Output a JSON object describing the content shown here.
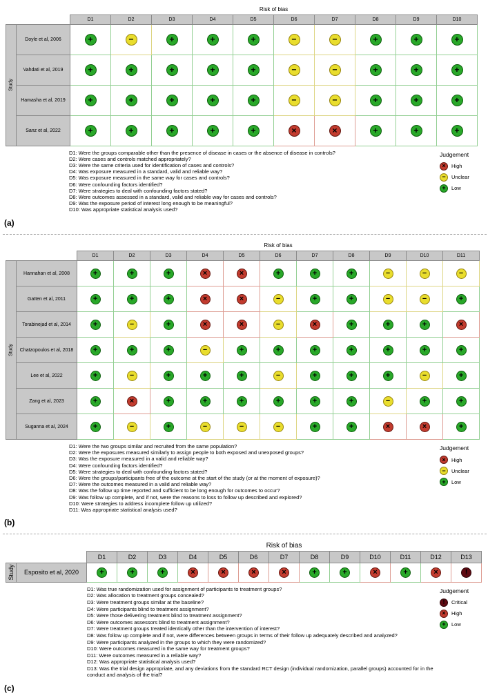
{
  "colors": {
    "low": "#29a829",
    "unclear": "#e9dd2d",
    "high": "#c23b2e",
    "critical": "#5f0a12",
    "header_bg": "#c8c8c8"
  },
  "symbols": {
    "low": "+",
    "unclear": "−",
    "high": "×",
    "critical": "!"
  },
  "chart_data": [
    {
      "type": "heatmap",
      "panel": "(a)",
      "title": "Risk of bias",
      "ylabel": "Study",
      "domains": [
        "D1",
        "D2",
        "D3",
        "D4",
        "D5",
        "D6",
        "D7",
        "D8",
        "D9",
        "D10"
      ],
      "studies": [
        "Doyle et al, 2006",
        "Vahdati et al, 2019",
        "Hamasha et al, 2019",
        "Sanz et al, 2022"
      ],
      "judgements": [
        [
          "low",
          "unclear",
          "low",
          "low",
          "low",
          "unclear",
          "unclear",
          "low",
          "low",
          "low"
        ],
        [
          "low",
          "low",
          "low",
          "low",
          "low",
          "unclear",
          "unclear",
          "low",
          "low",
          "low"
        ],
        [
          "low",
          "low",
          "low",
          "low",
          "low",
          "unclear",
          "unclear",
          "low",
          "low",
          "low"
        ],
        [
          "low",
          "low",
          "low",
          "low",
          "low",
          "high",
          "high",
          "low",
          "low",
          "low"
        ]
      ],
      "questions": [
        "D1: Were the groups comparable other than the presence of disease in cases or the absence of disease in controls?",
        "D2: Were cases and controls matched appropriately?",
        "D3: Were the same criteria used for identification of cases and controls?",
        "D4: Was exposure measured in a standard, valid and reliable way?",
        "D5: Was exposure measured in the same way for cases and controls?",
        "D6: Were confounding factors identified?",
        "D7: Were strategies to deal with confounding factors stated?",
        "D8: Were outcomes assessed in a standard, valid and reliable way for cases and controls?",
        "D9: Was the exposure period of interest long enough to be meaningful?",
        "D10: Was appropriate statistical analysis used?"
      ],
      "legend": {
        "title": "Judgement",
        "items": [
          {
            "label": "High",
            "judgement": "high"
          },
          {
            "label": "Unclear",
            "judgement": "unclear"
          },
          {
            "label": "Low",
            "judgement": "low"
          }
        ]
      }
    },
    {
      "type": "heatmap",
      "panel": "(b)",
      "title": "Risk of bias",
      "ylabel": "Study",
      "domains": [
        "D1",
        "D2",
        "D3",
        "D4",
        "D5",
        "D6",
        "D7",
        "D8",
        "D9",
        "D10",
        "D11"
      ],
      "studies": [
        "Hannahan et al, 2008",
        "Gatten et al, 2011",
        "Torabinejad et al, 2014",
        "Chatzopoulos et al, 2018",
        "Lee et al, 2022",
        "Zang et al, 2023",
        "Suganna et al, 2024"
      ],
      "judgements": [
        [
          "low",
          "low",
          "low",
          "high",
          "high",
          "low",
          "low",
          "low",
          "unclear",
          "unclear",
          "unclear"
        ],
        [
          "low",
          "low",
          "low",
          "high",
          "high",
          "unclear",
          "low",
          "low",
          "unclear",
          "unclear",
          "low"
        ],
        [
          "low",
          "unclear",
          "low",
          "high",
          "high",
          "unclear",
          "high",
          "low",
          "low",
          "low",
          "high"
        ],
        [
          "low",
          "low",
          "low",
          "unclear",
          "low",
          "low",
          "low",
          "low",
          "low",
          "low",
          "low"
        ],
        [
          "low",
          "unclear",
          "low",
          "low",
          "low",
          "unclear",
          "low",
          "low",
          "low",
          "unclear",
          "low"
        ],
        [
          "low",
          "high",
          "low",
          "low",
          "low",
          "low",
          "low",
          "low",
          "unclear",
          "low",
          "low"
        ],
        [
          "low",
          "unclear",
          "low",
          "unclear",
          "unclear",
          "unclear",
          "low",
          "low",
          "high",
          "high",
          "low"
        ]
      ],
      "questions": [
        "D1: Were the two groups similar and recruited from the same population?",
        "D2: Were the exposures measured similarly to assign people to both exposed and unexposed groups?",
        "D3: Was the exposure measured in a valid and reliable way?",
        "D4: Were confounding factors identified?",
        "D5: Were strategies to deal with confounding factors stated?",
        "D6: Were the groups/participants free of the outcome at the start of the study (or at the moment of exposure)?",
        "D7: Were the outcomes measured in a valid and reliable way?",
        "D8: Was the follow up time reported and sufficient to be long enough for outcomes to occur?",
        "D9: Was follow up complete, and if not, were the reasons to loss to follow up described and explored?",
        "D10: Were strategies to address incomplete follow up utilized?",
        "D11: Was appropriate statistical analysis used?"
      ],
      "legend": {
        "title": "Judgement",
        "items": [
          {
            "label": "High",
            "judgement": "high"
          },
          {
            "label": "Unclear",
            "judgement": "unclear"
          },
          {
            "label": "Low",
            "judgement": "low"
          }
        ]
      }
    },
    {
      "type": "heatmap",
      "panel": "(c)",
      "title": "Risk of bias",
      "ylabel": "Study",
      "domains": [
        "D1",
        "D2",
        "D3",
        "D4",
        "D5",
        "D6",
        "D7",
        "D8",
        "D9",
        "D10",
        "D11",
        "D12",
        "D13"
      ],
      "studies": [
        "Esposito et al, 2020"
      ],
      "judgements": [
        [
          "low",
          "low",
          "low",
          "high",
          "high",
          "high",
          "high",
          "low",
          "low",
          "high",
          "low",
          "high",
          "critical"
        ]
      ],
      "questions": [
        "D1: Was true randomization used for assignment of participants to treatment groups?",
        "D2: Was allocation to treatment groups concealed?",
        "D3: Were treatment groups similar at the baseline?",
        "D4: Were participants blind to treatment assignment?",
        "D5: Were those delivering treatment blind to treatment assignment?",
        "D6: Were outcomes assessors blind to treatment assignment?",
        "D7: Were treatment groups treated identically other than the intervention of interest?",
        "D8: Was follow up complete and if not, were differences between groups in terms of their follow up adequately described and analyzed?",
        "D9: Were participants analyzed in the groups to which they were randomized?",
        "D10: Were outcomes measured in the same way for treatment groups?",
        "D11: Were outcomes measured in a reliable way?",
        "D12: Was appropriate statistical analysis used?",
        "D13: Was the trial design appropriate, and any deviations from the standard RCT design (individual randomization, parallel groups) accounted for in the conduct and analysis of the trial?"
      ],
      "legend": {
        "title": "Judgement",
        "items": [
          {
            "label": "Critical",
            "judgement": "critical"
          },
          {
            "label": "High",
            "judgement": "high"
          },
          {
            "label": "Low",
            "judgement": "low"
          }
        ]
      }
    }
  ]
}
